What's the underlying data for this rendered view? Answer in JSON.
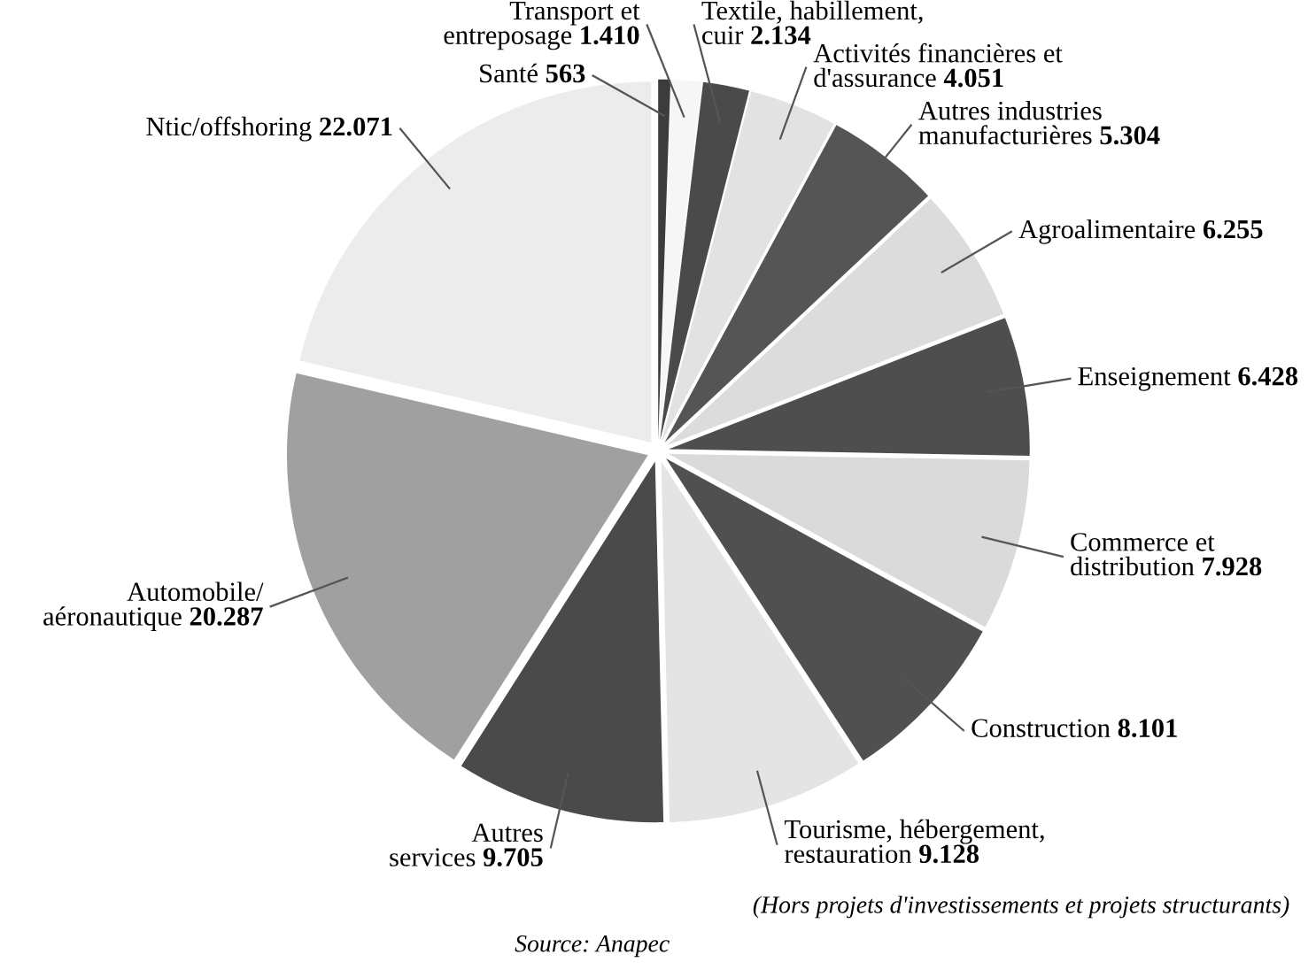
{
  "chart_data": {
    "type": "pie",
    "categories": [
      "Santé",
      "Transport et\nentreposage",
      "Textile, habillement,\ncuir",
      "Activités financières et\nd'assurance",
      "Autres industries\nmanufacturières",
      "Agroalimentaire",
      "Enseignement",
      "Commerce et\ndistribution",
      "Construction",
      "Tourisme, hébergement,\nrestauration",
      "Autres\nservices",
      "Automobile/\naéronautique",
      "Ntic/offshoring"
    ],
    "values": [
      563,
      1410,
      2134,
      4051,
      5304,
      6255,
      6428,
      7928,
      8101,
      9128,
      9705,
      20287,
      22071
    ],
    "value_labels": [
      "563",
      "1.410",
      "2.134",
      "4.051",
      "5.304",
      "6.255",
      "6.428",
      "7.928",
      "8.101",
      "9.128",
      "9.705",
      "20.287",
      "22.071"
    ],
    "colors": [
      "#3c3c3c",
      "#f6f6f6",
      "#4a4a4a",
      "#e2e2e2",
      "#555555",
      "#dcdcdc",
      "#4e4e4e",
      "#dadada",
      "#505050",
      "#e4e4e4",
      "#4a4a4a",
      "#a0a0a0",
      "#ececec"
    ],
    "annotations": [
      "(Hors projets d'investissements et projets structurants)",
      "Source: Anapec"
    ],
    "legend": false
  }
}
